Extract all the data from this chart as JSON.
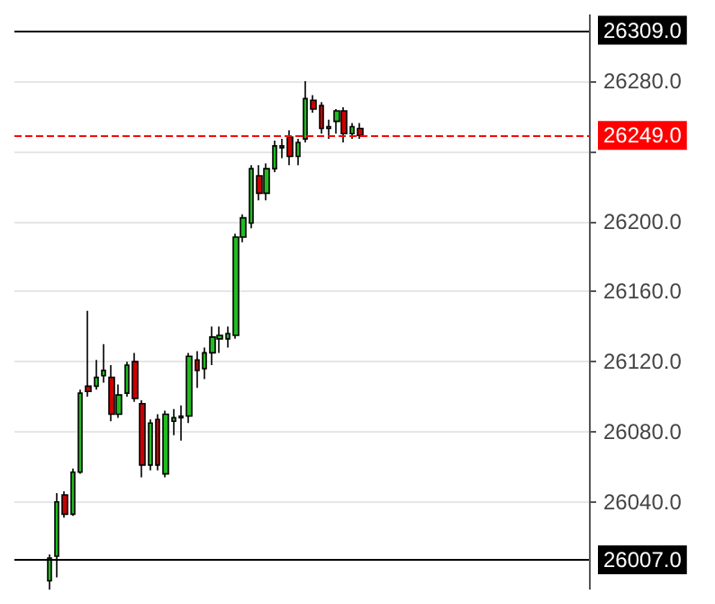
{
  "chart_data": {
    "type": "candlestick",
    "categories": [
      null,
      null,
      null,
      null,
      null,
      null,
      null,
      null,
      null,
      null,
      null,
      null,
      null,
      null,
      null,
      null,
      null,
      null,
      null,
      null,
      null,
      null,
      null,
      null,
      null,
      null,
      null,
      null,
      null,
      null,
      null,
      null,
      null,
      null,
      null,
      null,
      null,
      null,
      null,
      null,
      null,
      null,
      null,
      null,
      null,
      null,
      null,
      null,
      null,
      null,
      null,
      null,
      null,
      null,
      null,
      null,
      null,
      null,
      null,
      null,
      null,
      null,
      null,
      null,
      null,
      null,
      null,
      null,
      null,
      null,
      null,
      null,
      null,
      null
    ],
    "ohlc": [
      null,
      null,
      null,
      null,
      [
        25995,
        26010,
        25990,
        26008
      ],
      [
        26009,
        26045,
        25997,
        26040
      ],
      [
        26044,
        26046,
        26031,
        26033
      ],
      [
        26033,
        26059,
        26032,
        26057
      ],
      [
        26057,
        26104,
        26056,
        26102
      ],
      [
        26106,
        26149,
        26100,
        26103
      ],
      [
        26106,
        26121,
        26104,
        26111
      ],
      [
        26112,
        26130,
        26108,
        26115
      ],
      [
        26111,
        26118,
        26086,
        26090
      ],
      [
        26090,
        26107,
        26088,
        26101
      ],
      [
        26102,
        26120,
        26100,
        26118
      ],
      [
        26120,
        26125,
        26097,
        26099
      ],
      [
        26096,
        26098,
        26054,
        26061
      ],
      [
        26061,
        26087,
        26058,
        26085
      ],
      [
        26087,
        26090,
        26058,
        26061
      ],
      [
        26056,
        26092,
        26054,
        26090
      ],
      [
        26086,
        26093,
        26078,
        26088
      ],
      [
        26088,
        26095,
        26075,
        26089
      ],
      [
        26089,
        26125,
        26085,
        26123
      ],
      [
        26121,
        26126,
        26105,
        26115
      ],
      [
        26116,
        26128,
        26110,
        26125
      ],
      [
        26125,
        26140,
        26118,
        26134
      ],
      [
        26133,
        26140,
        26125,
        26135
      ],
      [
        26133,
        26140,
        26128,
        26136
      ],
      [
        26135,
        26193,
        26133,
        26191
      ],
      [
        26191,
        26204,
        26188,
        26202
      ],
      [
        26199,
        26232,
        26196,
        26230
      ],
      [
        26226,
        26232,
        26212,
        26216
      ],
      [
        26216,
        26233,
        26212,
        26230
      ],
      [
        26230,
        26246,
        26228,
        26243
      ],
      [
        26242,
        26247,
        26236,
        26243
      ],
      [
        26248,
        26252,
        26232,
        26237
      ],
      [
        26237,
        26247,
        26232,
        26245
      ],
      [
        26247,
        26280,
        26245,
        26270
      ],
      [
        26269,
        26272,
        26262,
        26264
      ],
      [
        26266,
        26268,
        26250,
        26253
      ],
      [
        26253,
        26258,
        26247,
        26254
      ],
      [
        26257,
        26264,
        26250,
        26263
      ],
      [
        26263,
        26265,
        26245,
        26250
      ],
      [
        26250,
        26256,
        26247,
        26254
      ],
      [
        26253,
        26256,
        26247,
        26249
      ],
      null,
      null,
      null,
      null,
      null,
      null,
      null,
      null,
      null,
      null,
      null,
      null,
      null,
      null,
      null,
      null,
      null,
      null,
      null,
      null,
      null,
      null,
      null,
      null,
      null,
      null,
      null,
      null,
      null
    ],
    "colors": [
      null,
      null,
      null,
      null,
      "#22bb22",
      "#22bb22",
      "#cc0000",
      "#22bb22",
      "#22bb22",
      "#cc0000",
      "#22bb22",
      "#22bb22",
      "#cc0000",
      "#22bb22",
      "#22bb22",
      "#cc0000",
      "#cc0000",
      "#22bb22",
      "#cc0000",
      "#22bb22",
      "#22bb22",
      "#22bb22",
      "#22bb22",
      "#cc0000",
      "#22bb22",
      "#22bb22",
      "#22bb22",
      "#22bb22",
      "#22bb22",
      "#22bb22",
      "#22bb22",
      "#cc0000",
      "#22bb22",
      "#22bb22",
      "#22bb22",
      "#cc0000",
      "#22bb22",
      "#22bb22",
      "#cc0000",
      "#cc0000",
      "#22bb22",
      "#22bb22",
      "#cc0000",
      "#22bb22",
      "#cc0000",
      null,
      null,
      null,
      null,
      null,
      null,
      null,
      null,
      null,
      null,
      null,
      null,
      null,
      null,
      null,
      null,
      null,
      null,
      null,
      null,
      null,
      null,
      null,
      null,
      null,
      null,
      null,
      null,
      null
    ],
    "ylim": [
      25990,
      26318
    ],
    "yticks": [
      {
        "value": 26040,
        "label": "26040.0"
      },
      {
        "value": 26080,
        "label": "26080.0"
      },
      {
        "value": 26120,
        "label": "26120.0"
      },
      {
        "value": 26160,
        "label": "26160.0"
      },
      {
        "value": 26200,
        "label": "26200.0"
      },
      {
        "value": 26240,
        "label": null
      },
      {
        "value": 26280,
        "label": "26280.0"
      }
    ],
    "ref_lines": [
      {
        "axis": "y",
        "value": 26007,
        "label": "26007.0",
        "color": "#000000"
      },
      {
        "axis": "y",
        "value": 26249,
        "label": "26249.0",
        "color": "#ff0000",
        "line_style": "dashed"
      },
      {
        "axis": "y",
        "value": 26309,
        "label": "26309.0",
        "color": "#000000"
      }
    ],
    "grid": "y",
    "tick_labels": "y"
  }
}
